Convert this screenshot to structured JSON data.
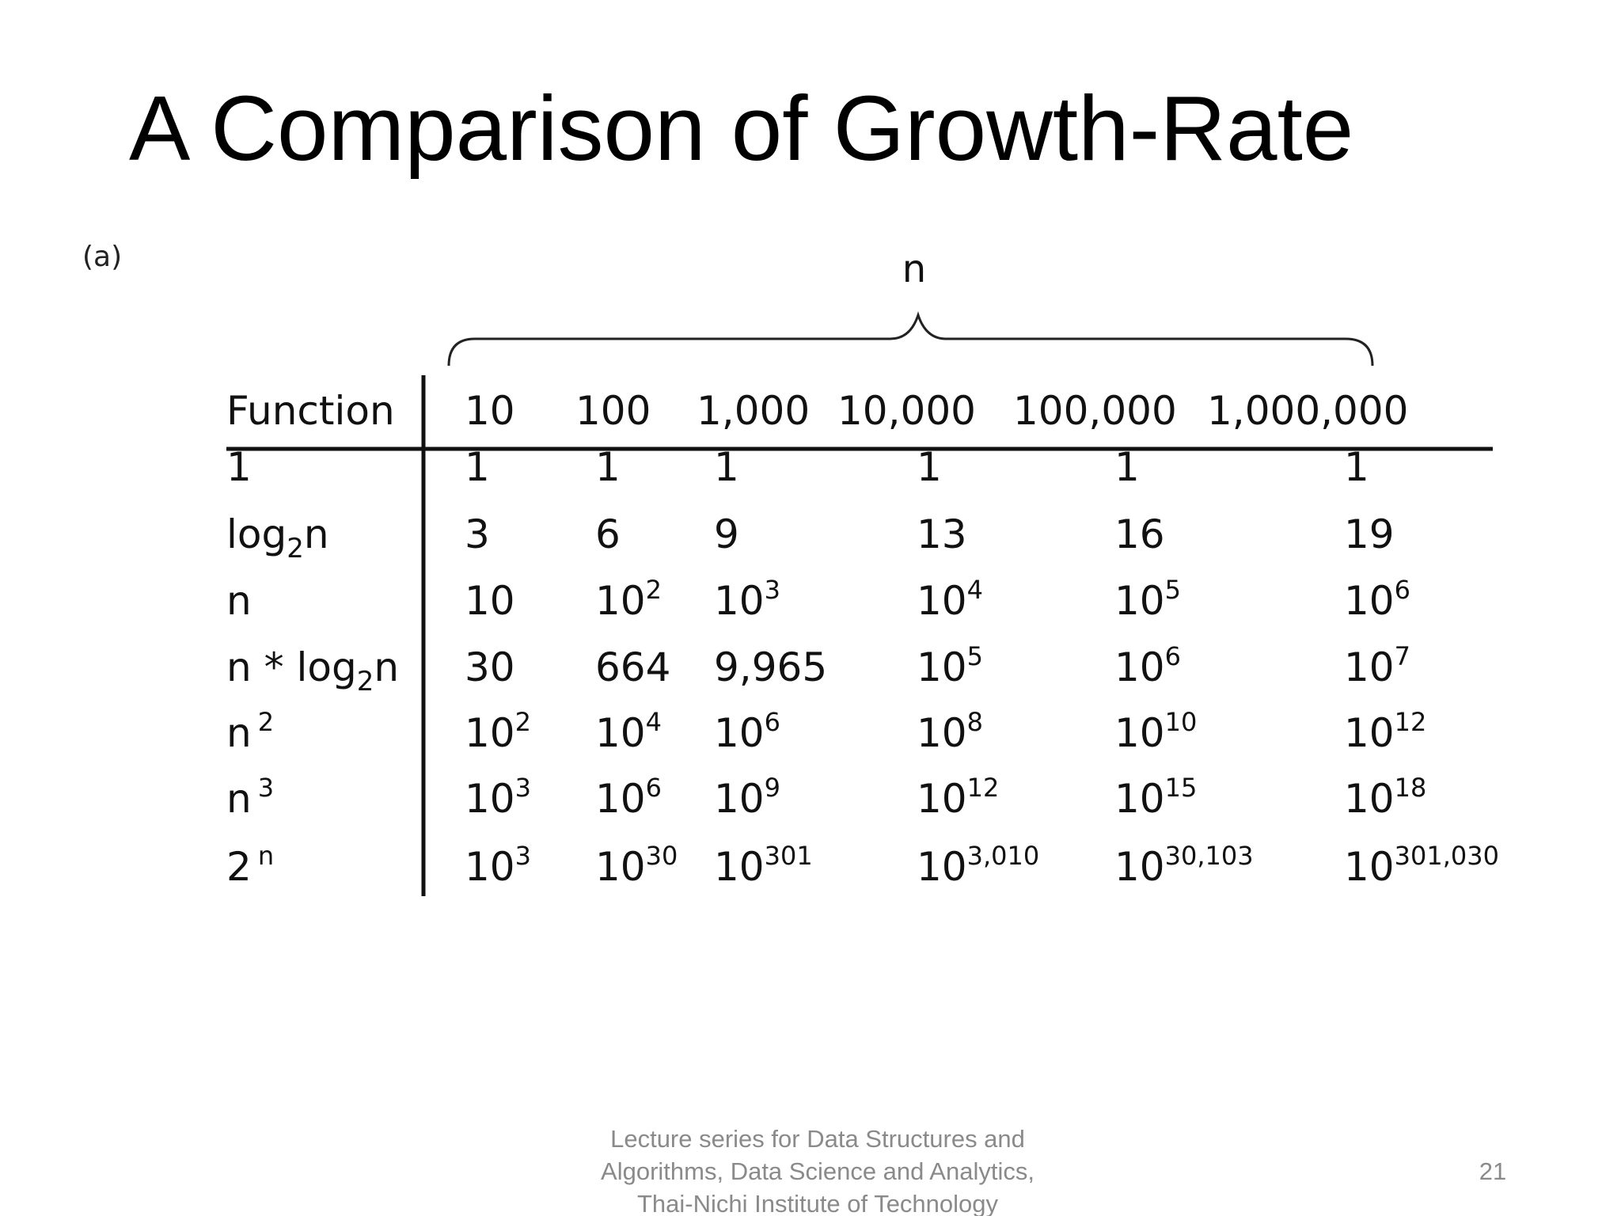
{
  "slide": {
    "title": "A Comparison of Growth-Rate",
    "figure_label": "(a)",
    "axis_label": "n",
    "table": {
      "header": [
        "Function",
        "10",
        "100",
        "1,000",
        "10,000",
        "100,000",
        "1,000,000"
      ],
      "rows": [
        [
          {
            "base": "1"
          },
          {
            "base": "1"
          },
          {
            "base": "1"
          },
          {
            "base": "1"
          },
          {
            "base": "1"
          },
          {
            "base": "1"
          },
          {
            "base": "1"
          }
        ],
        [
          {
            "base": "log",
            "sub": "2",
            "tail": "n"
          },
          {
            "base": "3"
          },
          {
            "base": "6"
          },
          {
            "base": "9"
          },
          {
            "base": "13"
          },
          {
            "base": "16"
          },
          {
            "base": "19"
          }
        ],
        [
          {
            "base": "n"
          },
          {
            "base": "10"
          },
          {
            "base": "10",
            "sup": "2"
          },
          {
            "base": "10",
            "sup": "3"
          },
          {
            "base": "10",
            "sup": "4"
          },
          {
            "base": "10",
            "sup": "5"
          },
          {
            "base": "10",
            "sup": "6"
          }
        ],
        [
          {
            "base": "n * log",
            "sub": "2",
            "tail": "n"
          },
          {
            "base": "30"
          },
          {
            "base": "664"
          },
          {
            "base": "9,965"
          },
          {
            "base": "10",
            "sup": "5"
          },
          {
            "base": "10",
            "sup": "6"
          },
          {
            "base": "10",
            "sup": "7"
          }
        ],
        [
          {
            "base": "n",
            "sup": "2"
          },
          {
            "base": "10",
            "sup": "2"
          },
          {
            "base": "10",
            "sup": "4"
          },
          {
            "base": "10",
            "sup": "6"
          },
          {
            "base": "10",
            "sup": "8"
          },
          {
            "base": "10",
            "sup": "10"
          },
          {
            "base": "10",
            "sup": "12"
          }
        ],
        [
          {
            "base": "n",
            "sup": "3"
          },
          {
            "base": "10",
            "sup": "3"
          },
          {
            "base": "10",
            "sup": "6"
          },
          {
            "base": "10",
            "sup": "9"
          },
          {
            "base": "10",
            "sup": "12"
          },
          {
            "base": "10",
            "sup": "15"
          },
          {
            "base": "10",
            "sup": "18"
          }
        ],
        [
          {
            "base": "2",
            "sup": "n"
          },
          {
            "base": "10",
            "sup": "3"
          },
          {
            "base": "10",
            "sup": "30"
          },
          {
            "base": "10",
            "sup": "301"
          },
          {
            "base": "10",
            "sup": "3,010"
          },
          {
            "base": "10",
            "sup": "30,103"
          },
          {
            "base": "10",
            "sup": "301,030"
          }
        ]
      ]
    },
    "footer": {
      "lines": [
        "Lecture series for Data Structures and",
        "Algorithms, Data Science and Analytics,",
        "Thai-Nichi Institute of Technology"
      ],
      "page": "21"
    }
  }
}
